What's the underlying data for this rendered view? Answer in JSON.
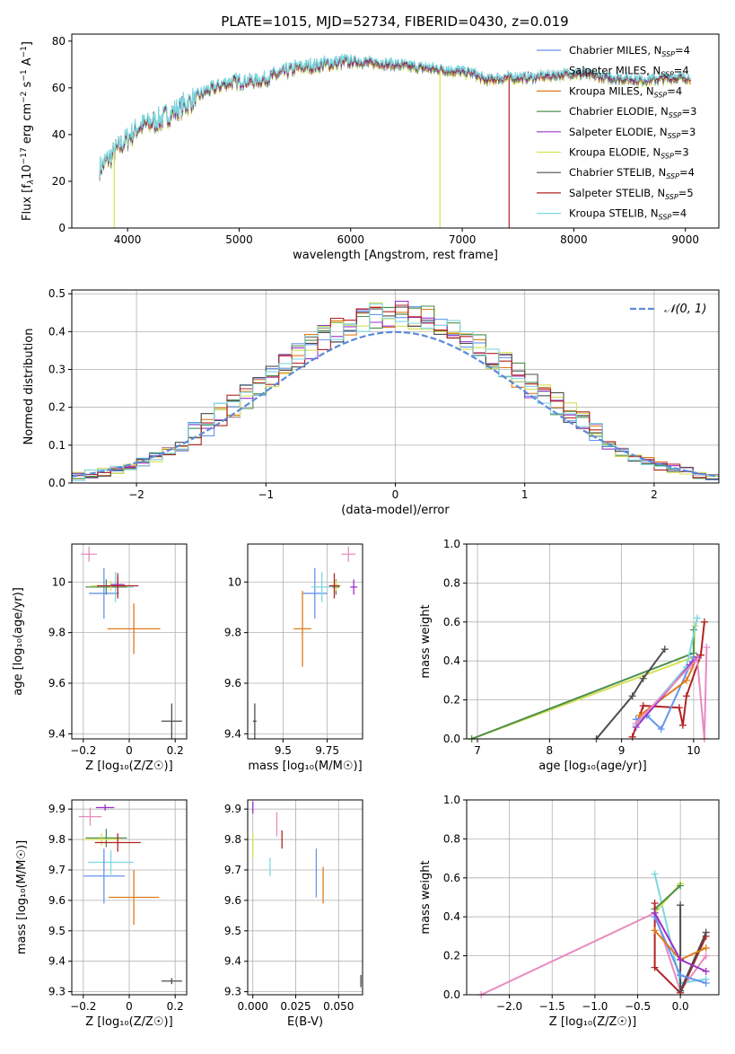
{
  "title": "PLATE=1015, MJD=52734, FIBERID=0430, z=0.019",
  "colors": {
    "Chabrier MILES": "#6495ed",
    "Salpeter MILES": "#e8e8e8",
    "Kroupa MILES": "#e07b1a",
    "Chabrier ELODIE": "#4d8f4d",
    "Salpeter ELODIE": "#9b30c8",
    "Kroupa ELODIE": "#d4e157",
    "Chabrier STELIB": "#4d4d4d",
    "Salpeter STELIB": "#b22222",
    "Kroupa STELIB": "#7fd8e0",
    "pink": "#e88bbf"
  },
  "chart_data": [
    {
      "id": "spectrum",
      "type": "line",
      "title": "PLATE=1015, MJD=52734, FIBERID=0430, z=0.019",
      "xlabel": "wavelength [Angstrom, rest frame]",
      "ylabel_parts": [
        "Flux [f",
        "λ",
        "10",
        "−17",
        " erg cm",
        "−2",
        " s",
        "−1",
        " A",
        "−1",
        "]"
      ],
      "xlim": [
        3500,
        9300
      ],
      "ylim": [
        0,
        83
      ],
      "xticks": [
        4000,
        5000,
        6000,
        7000,
        8000,
        9000
      ],
      "yticks": [
        0,
        20,
        40,
        60,
        80
      ],
      "legend": [
        {
          "name": "Chabrier MILES",
          "nssp": "4"
        },
        {
          "name": "Salpeter MILES",
          "nssp": "4"
        },
        {
          "name": "Kroupa MILES",
          "nssp": "4"
        },
        {
          "name": "Chabrier ELODIE",
          "nssp": "3"
        },
        {
          "name": "Salpeter ELODIE",
          "nssp": "3"
        },
        {
          "name": "Kroupa ELODIE",
          "nssp": "3"
        },
        {
          "name": "Chabrier STELIB",
          "nssp": "4"
        },
        {
          "name": "Salpeter STELIB",
          "nssp": "5"
        },
        {
          "name": "Kroupa STELIB",
          "nssp": "4"
        }
      ],
      "legend_nssp_label": "SSP",
      "continuum": [
        [
          3750,
          25
        ],
        [
          3900,
          33
        ],
        [
          4000,
          38
        ],
        [
          4100,
          43
        ],
        [
          4300,
          46
        ],
        [
          4500,
          52
        ],
        [
          4700,
          58
        ],
        [
          4900,
          62
        ],
        [
          5200,
          63
        ],
        [
          5500,
          68
        ],
        [
          5800,
          70
        ],
        [
          6000,
          71
        ],
        [
          6300,
          70
        ],
        [
          6500,
          69
        ],
        [
          6700,
          68
        ],
        [
          6900,
          67
        ],
        [
          7100,
          66
        ],
        [
          7200,
          63
        ],
        [
          7400,
          64
        ],
        [
          7600,
          64
        ],
        [
          7800,
          65
        ],
        [
          8000,
          66
        ],
        [
          8300,
          64
        ],
        [
          8600,
          63
        ],
        [
          8900,
          64
        ],
        [
          9050,
          64
        ]
      ],
      "dropouts": [
        {
          "series": "Kroupa ELODIE",
          "x": 3880
        },
        {
          "series": "Kroupa ELODIE",
          "x": 6800
        },
        {
          "series": "Salpeter STELIB",
          "x": 7420
        }
      ]
    },
    {
      "id": "residuals",
      "type": "histogram",
      "xlabel": "(data-model)/error",
      "ylabel": "Normed distribution",
      "xlim": [
        -2.5,
        2.5
      ],
      "ylim": [
        0,
        0.51
      ],
      "xticks": [
        -2,
        -1,
        0,
        1,
        2
      ],
      "yticks": [
        0.0,
        0.1,
        0.2,
        0.3,
        0.4,
        0.5
      ],
      "gaussian_label": "𝒩(0, 1)",
      "gaussian_color": "#5b8bd9",
      "bin_width": 0.1
    },
    {
      "id": "age-vs-Z",
      "type": "scatter",
      "xlabel": "Z [log₁₀(Z/Z☉)]",
      "ylabel": "age  [log₁₀(age/yr)]",
      "xlim": [
        -0.25,
        0.25
      ],
      "ylim": [
        9.38,
        10.15
      ],
      "xticks": [
        -0.2,
        0.0,
        0.2
      ],
      "yticks": [
        9.4,
        9.6,
        9.8,
        10.0
      ],
      "points": [
        {
          "c": "pink",
          "x": -0.175,
          "y": 10.11,
          "xe": 0.035,
          "ye": 0.03
        },
        {
          "c": "Chabrier MILES",
          "x": -0.11,
          "y": 9.955,
          "xe": 0.065,
          "ye": 0.1
        },
        {
          "c": "Kroupa STELIB",
          "x": -0.06,
          "y": 9.98,
          "xe": 0.08,
          "ye": 0.06
        },
        {
          "c": "Chabrier ELODIE",
          "x": -0.1,
          "y": 9.98,
          "xe": 0.09,
          "ye": 0.03
        },
        {
          "c": "Kroupa ELODIE",
          "x": -0.08,
          "y": 9.985,
          "xe": 0.09,
          "ye": 0.02
        },
        {
          "c": "Salpeter ELODIE",
          "x": -0.05,
          "y": 9.99,
          "xe": 0.03,
          "ye": 0.03
        },
        {
          "c": "Salpeter STELIB",
          "x": -0.05,
          "y": 9.985,
          "xe": 0.09,
          "ye": 0.05
        },
        {
          "c": "Kroupa MILES",
          "x": 0.02,
          "y": 9.815,
          "xe": 0.115,
          "ye": 0.1
        },
        {
          "c": "Chabrier STELIB",
          "x": 0.185,
          "y": 9.45,
          "xe": 0.045,
          "ye": 0.07
        }
      ]
    },
    {
      "id": "age-vs-mass",
      "type": "scatter",
      "xlabel": "mass [log₁₀(M/M☉)]",
      "ylabel": "",
      "xlim": [
        9.3,
        9.95
      ],
      "ylim": [
        9.38,
        10.15
      ],
      "xticks": [
        9.5,
        9.75
      ],
      "yticks": [
        9.4,
        9.6,
        9.8,
        10.0
      ],
      "points": [
        {
          "c": "pink",
          "x": 9.87,
          "y": 10.11,
          "xe": 0.04,
          "ye": 0.03
        },
        {
          "c": "Chabrier MILES",
          "x": 9.68,
          "y": 9.955,
          "xe": 0.07,
          "ye": 0.1
        },
        {
          "c": "Kroupa STELIB",
          "x": 9.72,
          "y": 9.98,
          "xe": 0.06,
          "ye": 0.06
        },
        {
          "c": "Chabrier ELODIE",
          "x": 9.8,
          "y": 9.98,
          "xe": 0.02,
          "ye": 0.03
        },
        {
          "c": "Kroupa ELODIE",
          "x": 9.8,
          "y": 9.985,
          "xe": 0.03,
          "ye": 0.02
        },
        {
          "c": "Salpeter ELODIE",
          "x": 9.9,
          "y": 9.98,
          "xe": 0.02,
          "ye": 0.03
        },
        {
          "c": "Salpeter STELIB",
          "x": 9.79,
          "y": 9.985,
          "xe": 0.03,
          "ye": 0.05
        },
        {
          "c": "Kroupa MILES",
          "x": 9.61,
          "y": 9.815,
          "xe": 0.05,
          "ye": 0.15
        },
        {
          "c": "Chabrier STELIB",
          "x": 9.34,
          "y": 9.45,
          "xe": 0.01,
          "ye": 0.07
        }
      ]
    },
    {
      "id": "weight-vs-age",
      "type": "line",
      "xlabel": "age  [log₁₀(age/yr)]",
      "ylabel": "mass weight",
      "xlim": [
        6.85,
        10.35
      ],
      "ylim": [
        0,
        1.0
      ],
      "xticks": [
        7,
        8,
        9,
        10
      ],
      "yticks": [
        0.0,
        0.2,
        0.4,
        0.6,
        0.8,
        1.0
      ],
      "series": [
        {
          "c": "Kroupa ELODIE",
          "pts": [
            [
              6.92,
              0.0
            ],
            [
              10.0,
              0.42
            ],
            [
              10.02,
              0.58
            ]
          ]
        },
        {
          "c": "Chabrier ELODIE",
          "pts": [
            [
              6.92,
              0.0
            ],
            [
              10.0,
              0.44
            ],
            [
              10.0,
              0.56
            ]
          ]
        },
        {
          "c": "Chabrier STELIB",
          "pts": [
            [
              8.65,
              0.0
            ],
            [
              9.15,
              0.22
            ],
            [
              9.3,
              0.31
            ],
            [
              9.6,
              0.46
            ]
          ]
        },
        {
          "c": "Salpeter STELIB",
          "pts": [
            [
              9.15,
              0.01
            ],
            [
              9.3,
              0.17
            ],
            [
              9.8,
              0.16
            ],
            [
              9.85,
              0.07
            ],
            [
              9.9,
              0.22
            ],
            [
              10.1,
              0.43
            ],
            [
              10.15,
              0.6
            ]
          ]
        },
        {
          "c": "Chabrier MILES",
          "pts": [
            [
              9.2,
              0.1
            ],
            [
              9.35,
              0.12
            ],
            [
              9.55,
              0.05
            ],
            [
              10.0,
              0.42
            ]
          ]
        },
        {
          "c": "Kroupa MILES",
          "pts": [
            [
              9.25,
              0.12
            ],
            [
              9.9,
              0.3
            ],
            [
              10.05,
              0.42
            ]
          ]
        },
        {
          "c": "Kroupa STELIB",
          "pts": [
            [
              9.2,
              0.07
            ],
            [
              9.9,
              0.37
            ],
            [
              10.05,
              0.62
            ]
          ]
        },
        {
          "c": "Salpeter ELODIE",
          "pts": [
            [
              9.2,
              0.06
            ],
            [
              9.95,
              0.38
            ],
            [
              10.05,
              0.42
            ]
          ]
        },
        {
          "c": "pink",
          "pts": [
            [
              9.2,
              0.08
            ],
            [
              10.05,
              0.41
            ],
            [
              10.15,
              0.0
            ],
            [
              10.18,
              0.47
            ]
          ]
        }
      ]
    },
    {
      "id": "mass-vs-Z",
      "type": "scatter",
      "xlabel": "Z [log₁₀(Z/Z☉)]",
      "ylabel": "mass [log₁₀(M/M☉)]",
      "xlim": [
        -0.25,
        0.25
      ],
      "ylim": [
        9.29,
        9.93
      ],
      "xticks": [
        -0.2,
        0.0,
        0.2
      ],
      "yticks": [
        9.3,
        9.4,
        9.5,
        9.6,
        9.7,
        9.8,
        9.9
      ],
      "points": [
        {
          "c": "Salpeter ELODIE",
          "x": -0.105,
          "y": 9.905,
          "xe": 0.04,
          "ye": 0.01
        },
        {
          "c": "pink",
          "x": -0.17,
          "y": 9.875,
          "xe": 0.05,
          "ye": 0.03
        },
        {
          "c": "Chabrier ELODIE",
          "x": -0.1,
          "y": 9.805,
          "xe": 0.09,
          "ye": 0.03
        },
        {
          "c": "Kroupa ELODIE",
          "x": -0.12,
          "y": 9.8,
          "xe": 0.08,
          "ye": 0.02
        },
        {
          "c": "Salpeter STELIB",
          "x": -0.05,
          "y": 9.79,
          "xe": 0.1,
          "ye": 0.03
        },
        {
          "c": "Kroupa STELIB",
          "x": -0.08,
          "y": 9.725,
          "xe": 0.1,
          "ye": 0.04
        },
        {
          "c": "Chabrier MILES",
          "x": -0.11,
          "y": 9.68,
          "xe": 0.09,
          "ye": 0.09
        },
        {
          "c": "Kroupa MILES",
          "x": 0.02,
          "y": 9.61,
          "xe": 0.11,
          "ye": 0.09
        },
        {
          "c": "Chabrier STELIB",
          "x": 0.185,
          "y": 9.335,
          "xe": 0.045,
          "ye": 0.01
        }
      ]
    },
    {
      "id": "EBV-vs-mass",
      "type": "scatter",
      "xlabel": "E(B-V)",
      "ylabel": "",
      "xlim": [
        -0.003,
        0.064
      ],
      "ylim": [
        9.29,
        9.93
      ],
      "xticks": [
        0.0,
        0.025,
        0.05
      ],
      "xticklabels": [
        "0.000",
        "0.025",
        "0.050"
      ],
      "yticks": [
        9.3,
        9.4,
        9.5,
        9.6,
        9.7,
        9.8,
        9.9
      ],
      "points": [
        {
          "c": "Salpeter ELODIE",
          "x": 0.0,
          "y": 9.905,
          "xe": 0,
          "ye": 0.02
        },
        {
          "c": "Kroupa ELODIE",
          "x": 0.0,
          "y": 9.78,
          "xe": 0,
          "ye": 0.04
        },
        {
          "c": "pink",
          "x": 0.014,
          "y": 9.85,
          "xe": 0,
          "ye": 0.04
        },
        {
          "c": "Salpeter STELIB",
          "x": 0.017,
          "y": 9.8,
          "xe": 0,
          "ye": 0.03
        },
        {
          "c": "Kroupa STELIB",
          "x": 0.01,
          "y": 9.71,
          "xe": 0,
          "ye": 0.03
        },
        {
          "c": "Chabrier MILES",
          "x": 0.037,
          "y": 9.69,
          "xe": 0,
          "ye": 0.08
        },
        {
          "c": "Kroupa MILES",
          "x": 0.041,
          "y": 9.65,
          "xe": 0,
          "ye": 0.06
        },
        {
          "c": "Chabrier STELIB",
          "x": 0.063,
          "y": 9.335,
          "xe": 0,
          "ye": 0.02
        }
      ]
    },
    {
      "id": "weight-vs-Z",
      "type": "line",
      "xlabel": "Z [log₁₀(Z/Z☉)]",
      "ylabel": "mass weight",
      "xlim": [
        -2.5,
        0.45
      ],
      "ylim": [
        0,
        1.0
      ],
      "xticks": [
        -2.0,
        -1.5,
        -1.0,
        -0.5,
        0.0
      ],
      "xticklabels": [
        "−2.0",
        "−1.5",
        "−1.0",
        "−0.5",
        "0.0"
      ],
      "yticks": [
        0.0,
        0.2,
        0.4,
        0.6,
        0.8,
        1.0
      ],
      "series": [
        {
          "c": "pink",
          "pts": [
            [
              -2.33,
              0.0
            ],
            [
              -0.3,
              0.42
            ],
            [
              0.0,
              0.02
            ],
            [
              0.3,
              0.2
            ]
          ]
        },
        {
          "c": "Kroupa STELIB",
          "pts": [
            [
              -0.3,
              0.62
            ],
            [
              0.0,
              0.06
            ],
            [
              0.3,
              0.08
            ]
          ]
        },
        {
          "c": "Kroupa ELODIE",
          "pts": [
            [
              -0.3,
              0.42
            ],
            [
              0.0,
              0.57
            ]
          ]
        },
        {
          "c": "Chabrier ELODIE",
          "pts": [
            [
              -0.3,
              0.44
            ],
            [
              0.0,
              0.56
            ]
          ]
        },
        {
          "c": "Salpeter STELIB",
          "pts": [
            [
              -0.3,
              0.47
            ],
            [
              -0.3,
              0.14
            ],
            [
              0.0,
              0.01
            ],
            [
              0.3,
              0.3
            ]
          ]
        },
        {
          "c": "Chabrier STELIB",
          "pts": [
            [
              0.0,
              0.46
            ],
            [
              0.0,
              0.02
            ],
            [
              0.3,
              0.32
            ]
          ]
        },
        {
          "c": "Chabrier MILES",
          "pts": [
            [
              -0.3,
              0.4
            ],
            [
              0.0,
              0.1
            ],
            [
              0.3,
              0.06
            ]
          ]
        },
        {
          "c": "Kroupa MILES",
          "pts": [
            [
              -0.3,
              0.33
            ],
            [
              0.0,
              0.18
            ],
            [
              0.3,
              0.24
            ]
          ]
        },
        {
          "c": "Salpeter ELODIE",
          "pts": [
            [
              -0.3,
              0.42
            ],
            [
              0.0,
              0.18
            ],
            [
              0.3,
              0.12
            ]
          ]
        }
      ]
    }
  ]
}
